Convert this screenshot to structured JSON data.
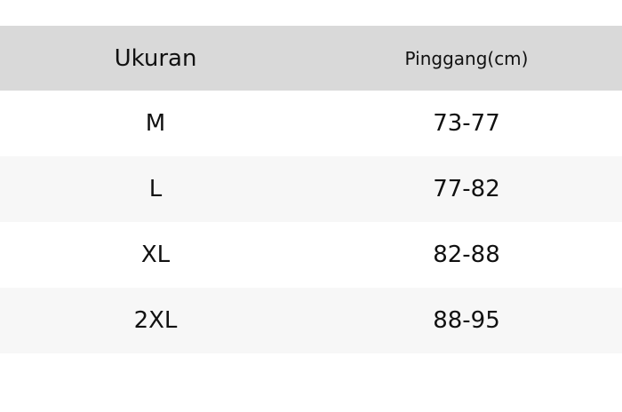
{
  "table": {
    "header": [
      "Ukuran",
      "Pinggang(cm)"
    ],
    "rows": [
      [
        "M",
        "73-77"
      ],
      [
        "L",
        "77-82"
      ],
      [
        "XL",
        "82-88"
      ],
      [
        "2XL",
        "88-95"
      ]
    ]
  }
}
